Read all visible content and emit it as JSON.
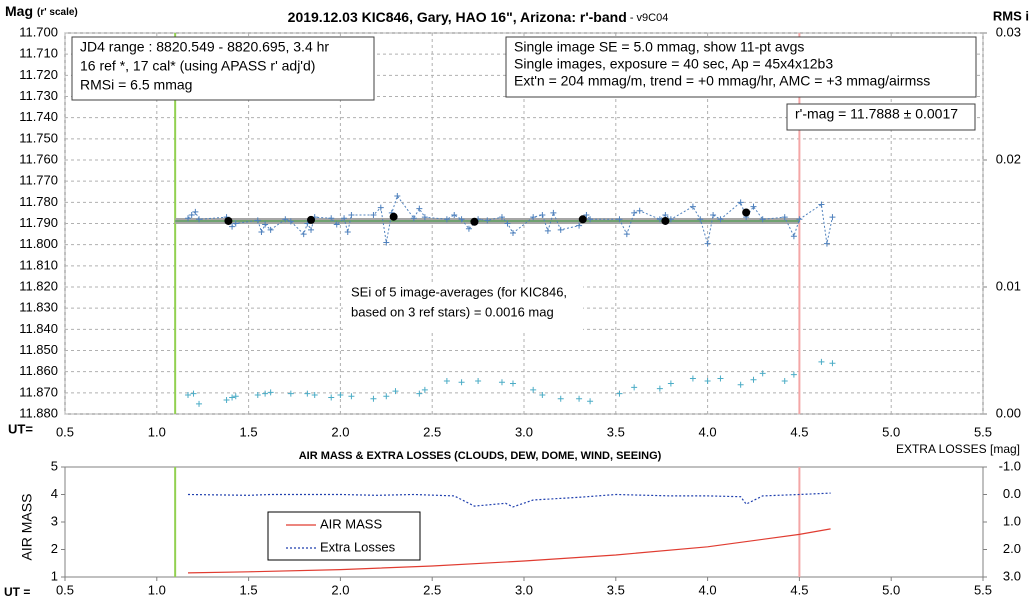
{
  "chart_data": [
    {
      "type": "line",
      "title": "2019.12.03 KIC846, Gary, HAO 16\", Arizona: r'-band",
      "subtitle": " - v9C04",
      "y_label": "Mag",
      "y_label_unit": "(r' scale)",
      "y2_label": "RMS i",
      "x_label": "UT=",
      "xlim": [
        0.5,
        5.5
      ],
      "xticks": [
        0.5,
        {
          "value": 1,
          "label": "1.0"
        },
        1.5,
        {
          "value": 2,
          "label": "2.0"
        },
        2.5,
        {
          "value": 3,
          "label": "3.0"
        },
        3.5,
        {
          "value": 4,
          "label": "4.0"
        },
        4.5,
        {
          "value": 5,
          "label": "5.0"
        },
        5.5
      ],
      "ylim": [
        11.7,
        11.88
      ],
      "y_inverted": true,
      "yticks": [
        {
          "value": 11.7,
          "label": "11.700"
        },
        {
          "value": 11.71,
          "label": "11.710"
        },
        {
          "value": 11.72,
          "label": "11.720"
        },
        {
          "value": 11.73,
          "label": "11.730"
        },
        {
          "value": 11.74,
          "label": "11.740"
        },
        {
          "value": 11.75,
          "label": "11.750"
        },
        {
          "value": 11.76,
          "label": "11.760"
        },
        {
          "value": 11.77,
          "label": "11.770"
        },
        {
          "value": 11.78,
          "label": "11.780"
        },
        {
          "value": 11.79,
          "label": "11.790"
        },
        {
          "value": 11.8,
          "label": "11.800"
        },
        {
          "value": 11.81,
          "label": "11.810"
        },
        {
          "value": 11.82,
          "label": "11.820"
        },
        {
          "value": 11.83,
          "label": "11.830"
        },
        {
          "value": 11.84,
          "label": "11.840"
        },
        {
          "value": 11.85,
          "label": "11.850"
        },
        {
          "value": 11.86,
          "label": "11.860"
        },
        {
          "value": 11.87,
          "label": "11.870"
        },
        {
          "value": 11.88,
          "label": "11.880"
        }
      ],
      "y2lim": [
        0,
        0.03
      ],
      "y2ticks": [
        {
          "value": 0,
          "label": "0.00"
        },
        0.01,
        0.02,
        0.03
      ],
      "grid": true,
      "vlines": [
        {
          "x": 1.1,
          "color": "#92d050"
        },
        {
          "x": 4.5,
          "color": "#f4a6a6"
        }
      ],
      "series": [
        {
          "color": "#a6a6a6",
          "line": "solid",
          "width": 6,
          "marker": "none",
          "x": [
            1.1,
            4.5
          ],
          "values": [
            11.7888,
            11.7888
          ]
        },
        {
          "color": "#5fa05f",
          "line": "solid",
          "width": 1.5,
          "marker": "none",
          "x": [
            1.1,
            4.5
          ],
          "values": [
            11.7888,
            11.7888
          ]
        },
        {
          "color": "#4f81bd",
          "line": "dotted",
          "width": 1,
          "marker": "plus",
          "x": [
            1.17,
            1.19,
            1.21,
            1.23,
            1.38,
            1.41,
            1.43,
            1.55,
            1.57,
            1.59,
            1.62,
            1.7,
            1.73,
            1.8,
            1.82,
            1.84,
            1.86,
            1.95,
            1.98,
            2.02,
            2.04,
            2.06,
            2.18,
            2.22,
            2.25,
            2.28,
            2.31,
            2.4,
            2.43,
            2.46,
            2.58,
            2.62,
            2.66,
            2.7,
            2.75,
            2.8,
            2.88,
            2.91,
            2.94,
            3.05,
            3.1,
            3.13,
            3.16,
            3.2,
            3.3,
            3.34,
            3.36,
            3.52,
            3.56,
            3.6,
            3.63,
            3.74,
            3.77,
            3.8,
            3.92,
            3.96,
            4.0,
            4.03,
            4.07,
            4.18,
            4.21,
            4.25,
            4.3,
            4.42,
            4.47,
            4.5,
            4.62,
            4.65,
            4.68
          ],
          "values": [
            11.7875,
            11.786,
            11.7845,
            11.788,
            11.787,
            11.7915,
            11.79,
            11.7885,
            11.794,
            11.7905,
            11.793,
            11.788,
            11.789,
            11.795,
            11.79,
            11.793,
            11.787,
            11.7875,
            11.7905,
            11.7875,
            11.794,
            11.786,
            11.786,
            11.7825,
            11.799,
            11.785,
            11.777,
            11.7875,
            11.783,
            11.787,
            11.788,
            11.786,
            11.788,
            11.7925,
            11.788,
            11.7885,
            11.787,
            11.79,
            11.7945,
            11.787,
            11.786,
            11.7935,
            11.785,
            11.793,
            11.791,
            11.786,
            11.788,
            11.788,
            11.795,
            11.785,
            11.784,
            11.788,
            11.786,
            11.788,
            11.782,
            11.788,
            11.7995,
            11.786,
            11.788,
            11.78,
            11.787,
            11.782,
            11.788,
            11.787,
            11.796,
            11.788,
            11.781,
            11.7995,
            11.787
          ]
        },
        {
          "color": "#000000",
          "line": "none",
          "marker": "dot",
          "x": [
            1.39,
            1.84,
            2.29,
            2.73,
            3.32,
            3.77,
            4.21
          ],
          "values": [
            11.7888,
            11.7883,
            11.7868,
            11.7892,
            11.788,
            11.7888,
            11.7848
          ]
        },
        {
          "color": "#4bacc6",
          "line": "none",
          "marker": "plus",
          "axis": "y2",
          "x": [
            1.17,
            1.2,
            1.23,
            1.38,
            1.41,
            1.43,
            1.55,
            1.59,
            1.62,
            1.73,
            1.82,
            1.86,
            1.95,
            2.0,
            2.06,
            2.18,
            2.25,
            2.3,
            2.43,
            2.46,
            2.58,
            2.66,
            2.75,
            2.88,
            2.94,
            3.05,
            3.1,
            3.2,
            3.3,
            3.36,
            3.52,
            3.6,
            3.74,
            3.8,
            3.92,
            4.0,
            4.07,
            4.18,
            4.25,
            4.3,
            4.42,
            4.47,
            4.62,
            4.68
          ],
          "values": [
            0.0015,
            0.0016,
            0.0008,
            0.0011,
            0.0013,
            0.0014,
            0.0015,
            0.0016,
            0.0017,
            0.0016,
            0.0016,
            0.0015,
            0.0013,
            0.0015,
            0.0014,
            0.0012,
            0.0014,
            0.0018,
            0.0016,
            0.0019,
            0.0026,
            0.0025,
            0.0026,
            0.0025,
            0.0024,
            0.0019,
            0.0015,
            0.0012,
            0.0012,
            0.001,
            0.0016,
            0.0021,
            0.002,
            0.0024,
            0.0028,
            0.0026,
            0.0028,
            0.0023,
            0.0027,
            0.0032,
            0.0026,
            0.0031,
            0.0041,
            0.004
          ]
        }
      ],
      "annotations": [
        {
          "lines": [
            "JD4 range : 8820.549 - 8820.695,  3.4  hr",
            "16 ref *, 17 cal* (using APASS r' adj'd)",
            "RMSi = 6.5 mmag"
          ]
        },
        {
          "lines": [
            "Single image SE = 5.0 mmag, show  11-pt avgs",
            "Single images, exposure = 40 sec, Ap = 45x4x12b3",
            "Ext'n = 204 mmag/m, trend =  +0 mmag/hr, AMC = +3 mmag/airmss"
          ]
        },
        {
          "lines": [
            "r'-mag = 11.7888 ± 0.0017"
          ]
        },
        {
          "lines": [
            "SEi of 5 image-averages (for KIC846,",
            "based on 3 ref stars) = 0.0016 mag"
          ]
        }
      ]
    },
    {
      "type": "line",
      "title": "AIR MASS & EXTRA LOSSES (CLOUDS, DEW, DOME, WIND, SEEING)",
      "y_label": "AIR MASS",
      "y2_label": "EXTRA LOSSES [mag]",
      "x_label": "UT =",
      "xlim": [
        0.5,
        5.5
      ],
      "xticks": [
        0.5,
        {
          "value": 1,
          "label": "1.0"
        },
        1.5,
        {
          "value": 2,
          "label": "2.0"
        },
        2.5,
        {
          "value": 3,
          "label": "3.0"
        },
        3.5,
        {
          "value": 4,
          "label": "4.0"
        },
        4.5,
        {
          "value": 5,
          "label": "5.0"
        },
        5.5
      ],
      "ylim": [
        1,
        5
      ],
      "yticks": [
        1,
        2,
        3,
        4,
        5
      ],
      "y2lim": [
        -1,
        3
      ],
      "y2_inverted": true,
      "y2ticks": [
        {
          "value": -1,
          "label": "-1.0"
        },
        {
          "value": 0,
          "label": "0.0"
        },
        {
          "value": 1,
          "label": "1.0"
        },
        {
          "value": 2,
          "label": "2.0"
        },
        {
          "value": 3,
          "label": "3.0"
        }
      ],
      "grid": false,
      "vlines": [
        {
          "x": 1.1,
          "color": "#92d050"
        },
        {
          "x": 4.5,
          "color": "#f4a6a6"
        }
      ],
      "legend": "upper-left",
      "series": [
        {
          "name": "AIR MASS",
          "color": "#e03c31",
          "line": "solid",
          "width": 1.2,
          "marker": "none",
          "x": [
            1.17,
            1.5,
            2.0,
            2.5,
            3.0,
            3.5,
            4.0,
            4.5,
            4.67
          ],
          "values": [
            1.15,
            1.19,
            1.27,
            1.4,
            1.58,
            1.8,
            2.1,
            2.55,
            2.75
          ]
        },
        {
          "name": "Extra Losses",
          "color": "#1f3fae",
          "line": "dotted",
          "width": 1.2,
          "marker": "none",
          "axis": "y2",
          "x": [
            1.17,
            1.5,
            1.62,
            2.0,
            2.2,
            2.4,
            2.62,
            2.73,
            2.9,
            2.94,
            3.05,
            3.3,
            3.5,
            3.8,
            4.0,
            4.18,
            4.21,
            4.3,
            4.5,
            4.67
          ],
          "values": [
            0.0,
            0.03,
            0.0,
            0.0,
            0.03,
            0.0,
            0.05,
            0.42,
            0.32,
            0.45,
            0.2,
            0.1,
            0.0,
            0.05,
            0.05,
            0.08,
            0.35,
            0.05,
            0.0,
            -0.05
          ]
        }
      ]
    }
  ]
}
